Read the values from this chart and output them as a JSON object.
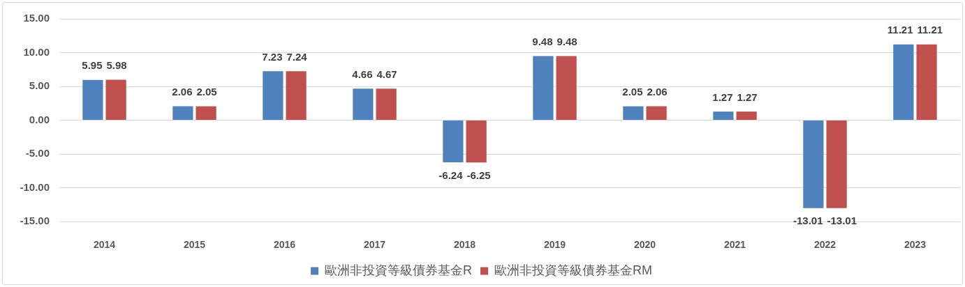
{
  "chart_data": {
    "type": "bar",
    "categories": [
      "2014",
      "2015",
      "2016",
      "2017",
      "2018",
      "2019",
      "2020",
      "2021",
      "2022",
      "2023"
    ],
    "series": [
      {
        "name": "歐洲非投資等級債券基金R",
        "color": "#4f81bd",
        "values": [
          5.95,
          2.06,
          7.23,
          4.66,
          -6.24,
          9.48,
          2.05,
          1.27,
          -13.01,
          11.21
        ]
      },
      {
        "name": "歐洲非投資等級債券基金RM",
        "color": "#c0504d",
        "values": [
          5.98,
          2.05,
          7.24,
          4.67,
          -6.25,
          9.48,
          2.06,
          1.27,
          -13.01,
          11.21
        ]
      }
    ],
    "ylim": [
      -15,
      15
    ],
    "yticks": [
      {
        "value": -15,
        "label": "-15.00"
      },
      {
        "value": -10,
        "label": "-10.00"
      },
      {
        "value": -5,
        "label": "-5.00"
      },
      {
        "value": 0,
        "label": "0.00"
      },
      {
        "value": 5,
        "label": "5.00"
      },
      {
        "value": 10,
        "label": "10.00"
      },
      {
        "value": 15,
        "label": "15.00"
      }
    ],
    "grid": "y",
    "legend": "bottom",
    "data_labels": true
  }
}
